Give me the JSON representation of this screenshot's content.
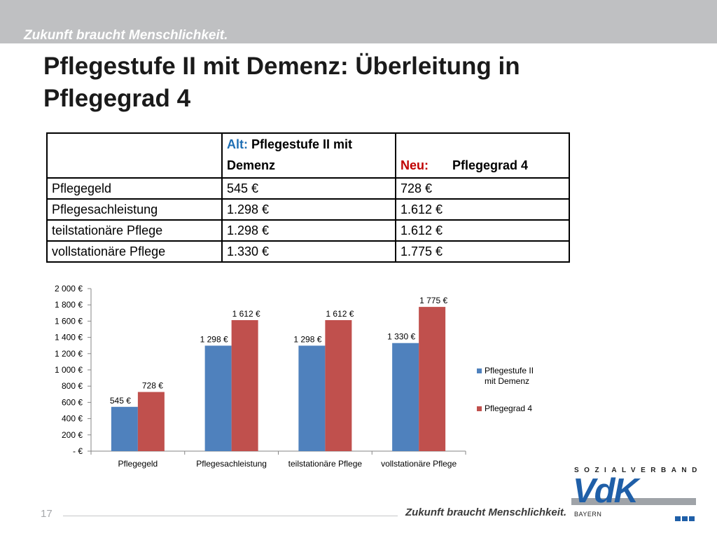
{
  "header": {
    "tagline": "Zukunft braucht Menschlichkeit.",
    "title_line1": "Pflegestufe II mit Demenz: Überleitung in",
    "title_line2": "Pflegegrad 4"
  },
  "table": {
    "header": {
      "alt_label": "Alt:",
      "alt_text_line1": "Pflegestufe II mit",
      "alt_text_line2": "Demenz",
      "neu_label": "Neu:",
      "neu_text": "Pflegegrad 4"
    },
    "rows": [
      {
        "label": "Pflegegeld",
        "alt": "545 €",
        "neu": "728 €"
      },
      {
        "label": "Pflegesachleistung",
        "alt": "1.298 €",
        "neu": "1.612 €"
      },
      {
        "label": "teilstationäre Pflege",
        "alt": "1.298 €",
        "neu": "1.612 €"
      },
      {
        "label": "vollstationäre Pflege",
        "alt": "1.330 €",
        "neu": "1.775 €"
      }
    ]
  },
  "chart_data": {
    "type": "bar",
    "categories": [
      "Pflegegeld",
      "Pflegesachleistung",
      "teilstationäre Pflege",
      "vollstationäre Pflege"
    ],
    "series": [
      {
        "name": "Pflegestufe II mit Demenz",
        "values": [
          545,
          1298,
          1298,
          1330
        ],
        "labels": [
          "545 €",
          "1 298 €",
          "1 298 €",
          "1 330 €"
        ],
        "color": "#4f81bd"
      },
      {
        "name": "Pflegegrad 4",
        "values": [
          728,
          1612,
          1612,
          1775
        ],
        "labels": [
          "728 €",
          "1 612 €",
          "1 612 €",
          "1 775 €"
        ],
        "color": "#c0504d"
      }
    ],
    "ylim": [
      0,
      2000
    ],
    "yticks": [
      0,
      200,
      400,
      600,
      800,
      1000,
      1200,
      1400,
      1600,
      1800,
      2000
    ],
    "ytick_labels": [
      "-   €",
      "200 €",
      "400 €",
      "600 €",
      "800 €",
      "1 000 €",
      "1 200 €",
      "1 400 €",
      "1 600 €",
      "1 800 €",
      "2 000 €"
    ],
    "legend_position": "right",
    "grid": false
  },
  "legend": {
    "items": [
      {
        "label_line1": "Pflegestufe II",
        "label_line2": "mit Demenz",
        "color": "#4f81bd"
      },
      {
        "label_line1": "Pflegegrad 4",
        "label_line2": "",
        "color": "#c0504d"
      }
    ]
  },
  "footer": {
    "page_number": "17",
    "tagline": "Zukunft braucht Menschlichkeit."
  },
  "logo": {
    "org_line": "SOZIALVERBAND",
    "wordmark": "VdK",
    "region": "BAYERN"
  }
}
